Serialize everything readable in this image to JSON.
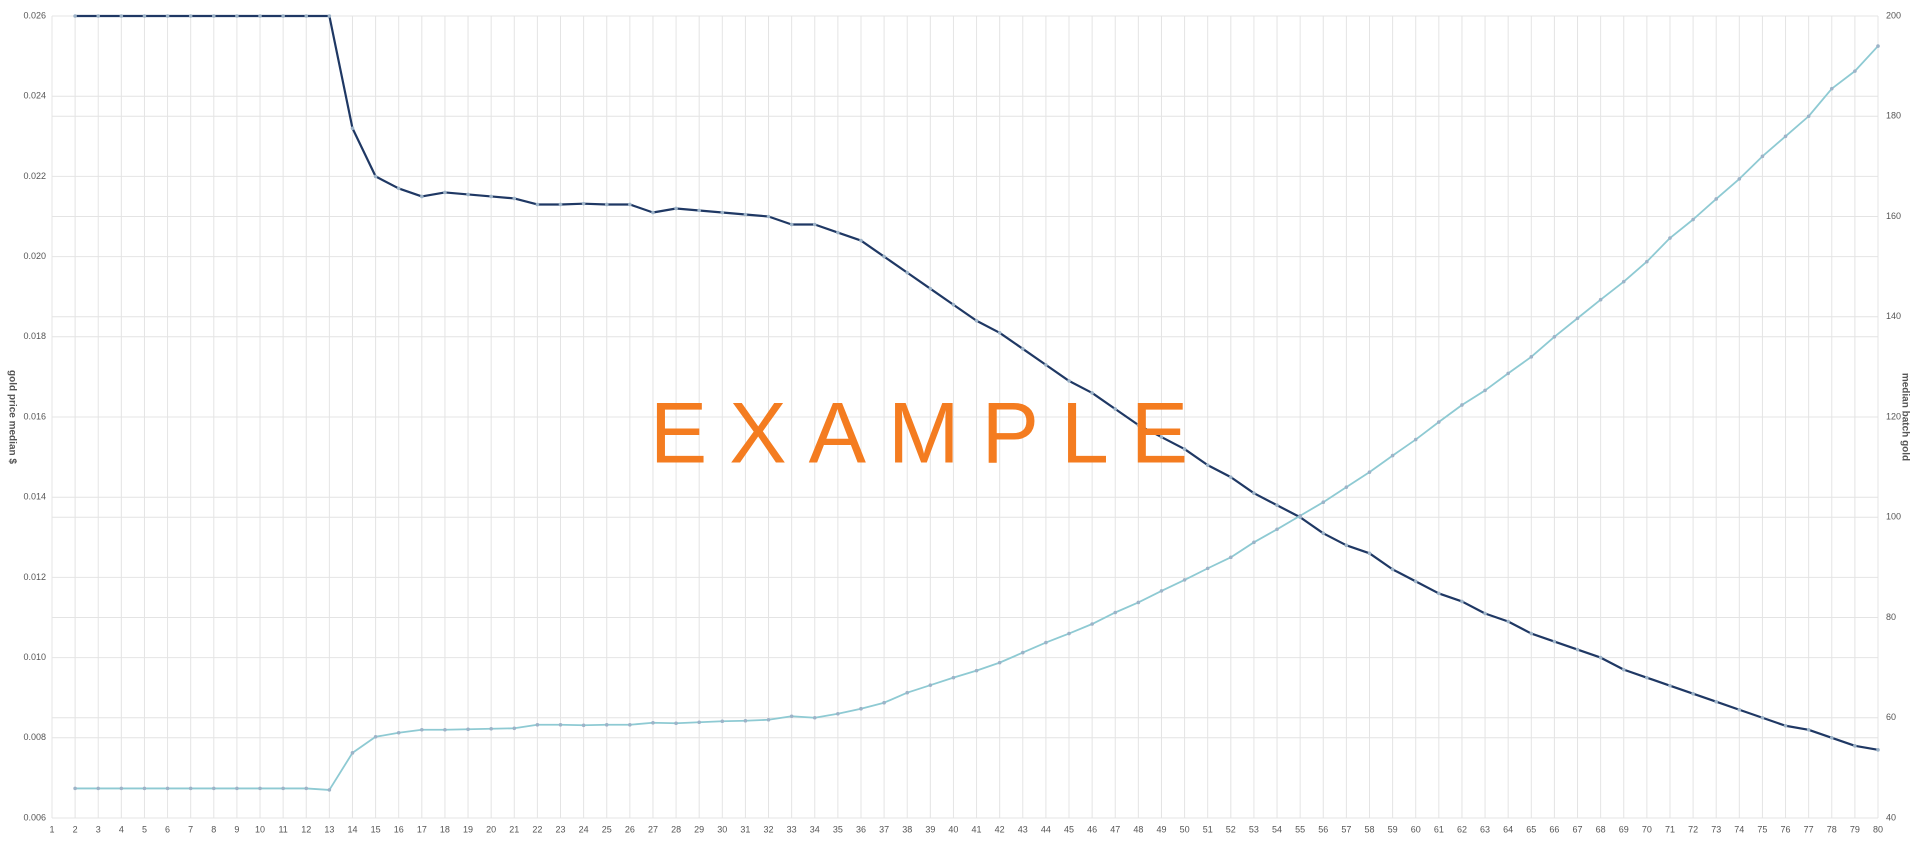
{
  "chart_data": {
    "type": "line",
    "y_label": "gold price median $",
    "y2_label": "median batch gold",
    "annotation": "EXAMPLE",
    "x": [
      1,
      2,
      3,
      4,
      5,
      6,
      7,
      8,
      9,
      10,
      11,
      12,
      13,
      14,
      15,
      16,
      17,
      18,
      19,
      20,
      21,
      22,
      23,
      24,
      25,
      26,
      27,
      28,
      29,
      30,
      31,
      32,
      33,
      34,
      35,
      36,
      37,
      38,
      39,
      40,
      41,
      42,
      43,
      44,
      45,
      46,
      47,
      48,
      49,
      50,
      51,
      52,
      53,
      54,
      55,
      56,
      57,
      58,
      59,
      60,
      61,
      62,
      63,
      64,
      65,
      66,
      67,
      68,
      69,
      70,
      71,
      72,
      73,
      74,
      75,
      76,
      77,
      78,
      79,
      80
    ],
    "xlim": [
      1,
      80
    ],
    "ylim": [
      0.006,
      0.026
    ],
    "yticks": [
      0.006,
      0.008,
      {
        "value": 0.01,
        "label": "0.010"
      },
      0.012,
      0.014,
      0.016,
      0.018,
      {
        "value": 0.02,
        "label": "0.020"
      },
      0.022,
      0.024,
      0.026
    ],
    "y2lim": [
      40,
      200
    ],
    "y2ticks": [
      40,
      60,
      80,
      100,
      120,
      140,
      160,
      180,
      200
    ],
    "grid": true,
    "series": [
      {
        "name": "gold price median $",
        "color": "#1f3864",
        "values": [
          null,
          0.026,
          0.026,
          0.026,
          0.026,
          0.026,
          0.026,
          0.026,
          0.026,
          0.026,
          0.026,
          0.026,
          0.026,
          0.0232,
          0.022,
          0.0217,
          0.0215,
          0.0216,
          0.02155,
          0.0215,
          0.02145,
          0.0213,
          0.0213,
          0.02132,
          0.0213,
          0.0213,
          0.0211,
          0.0212,
          0.02115,
          0.0211,
          0.02105,
          0.021,
          0.0208,
          0.0208,
          0.0206,
          0.0204,
          0.02,
          0.0196,
          0.0192,
          0.0188,
          0.0184,
          0.0181,
          0.0177,
          0.0173,
          0.0169,
          0.0166,
          0.0162,
          0.0158,
          0.0155,
          0.0152,
          0.0148,
          0.0145,
          0.0141,
          0.0138,
          0.0135,
          0.0131,
          0.0128,
          0.0126,
          0.0122,
          0.0119,
          0.0116,
          0.0114,
          0.0111,
          0.0109,
          0.0106,
          0.0104,
          0.0102,
          0.01,
          0.0097,
          0.0095,
          0.0093,
          0.0091,
          0.0089,
          0.0087,
          0.0085,
          0.0083,
          0.0082,
          0.008,
          0.0078,
          0.0077
        ]
      },
      {
        "name": "median batch gold",
        "color": "#8ecad3",
        "axis": "y2",
        "values": [
          null,
          45.9,
          45.9,
          45.9,
          45.9,
          45.9,
          45.9,
          45.9,
          45.9,
          45.9,
          45.9,
          45.9,
          45.6,
          53,
          56.2,
          57,
          57.6,
          57.6,
          57.7,
          57.8,
          57.9,
          58.6,
          58.6,
          58.5,
          58.6,
          58.6,
          59,
          58.9,
          59.1,
          59.3,
          59.4,
          59.6,
          60.3,
          60,
          60.8,
          61.8,
          63,
          65,
          66.5,
          68,
          69.4,
          71,
          73,
          75,
          76.8,
          78.7,
          81,
          83,
          85.3,
          87.5,
          89.8,
          92,
          95,
          97.6,
          100.3,
          103,
          106,
          109,
          112.3,
          115.5,
          119,
          122.4,
          125.3,
          128.7,
          132,
          136,
          139.7,
          143.4,
          147,
          151,
          155.7,
          159.4,
          163.5,
          167.5,
          172,
          176,
          180,
          185.5,
          189,
          194
        ]
      }
    ]
  }
}
